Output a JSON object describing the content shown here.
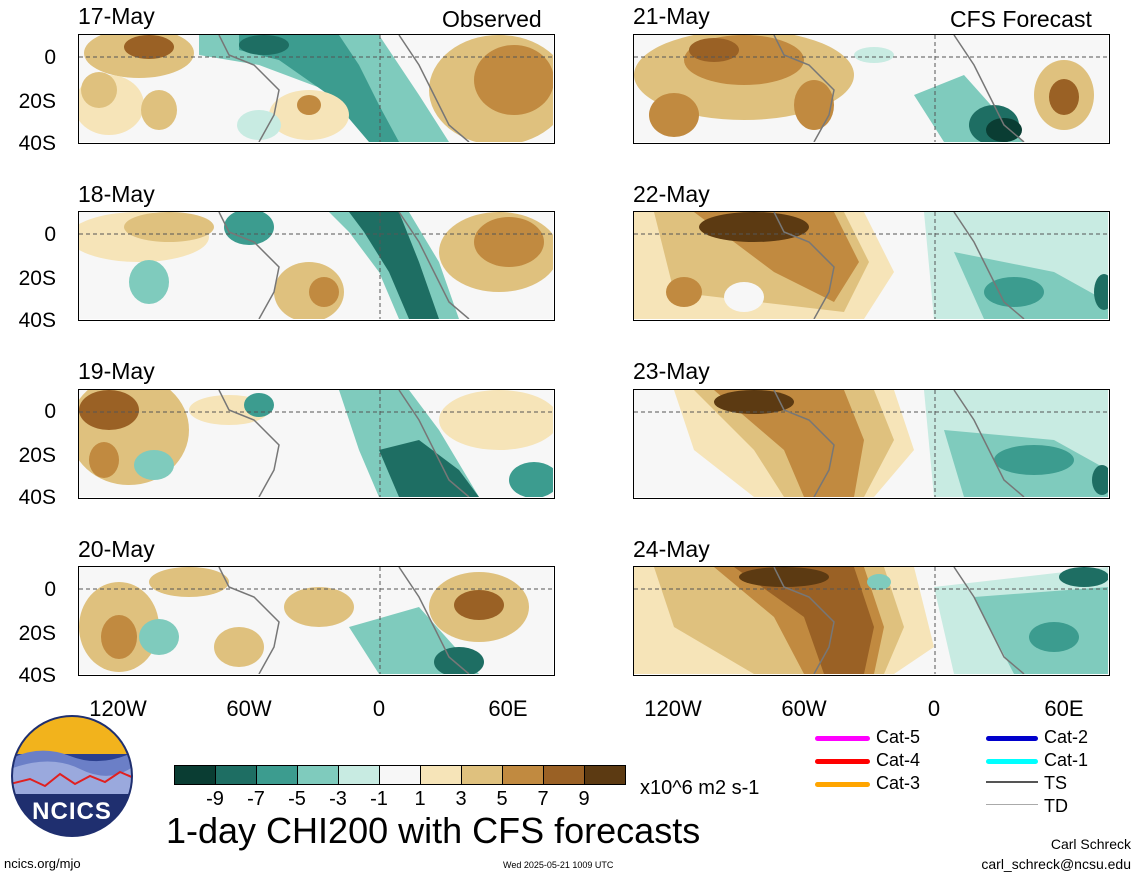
{
  "headers": {
    "left": "Observed",
    "right": "CFS Forecast"
  },
  "panels_left": [
    "17-May",
    "18-May",
    "19-May",
    "20-May"
  ],
  "panels_right": [
    "21-May",
    "22-May",
    "23-May",
    "24-May"
  ],
  "lat_labels": [
    "0",
    "20S",
    "40S"
  ],
  "lon_labels": [
    "120W",
    "60W",
    "0",
    "60E"
  ],
  "colorbar": {
    "ticks": [
      "-9",
      "-7",
      "-5",
      "-3",
      "-1",
      "1",
      "3",
      "5",
      "7",
      "9"
    ],
    "colors": [
      "#0a3d33",
      "#1e6e63",
      "#3c9c8f",
      "#7fcbbd",
      "#c8ebe2",
      "#f7f7f7",
      "#f6e4b8",
      "#dfc17e",
      "#c18a40",
      "#9a6125",
      "#5c3a12"
    ],
    "units": "x10^6 m2 s-1"
  },
  "title": "1-day CHI200 with CFS forecasts",
  "legend": [
    {
      "label": "Cat-5",
      "color": "#ff00ff"
    },
    {
      "label": "Cat-4",
      "color": "#ff0000"
    },
    {
      "label": "Cat-3",
      "color": "#ffa500"
    },
    {
      "label": "Cat-2",
      "color": "#0000cc"
    },
    {
      "label": "Cat-1",
      "color": "#00ffff"
    },
    {
      "label": "TS",
      "color": "#555555"
    },
    {
      "label": "TD",
      "color": "#aaaaaa"
    }
  ],
  "footer": {
    "url": "ncics.org/mjo",
    "timestamp": "Wed 2025-05-21 1009 UTC",
    "author": "Carl Schreck",
    "email": "carl_schreck@ncsu.edu"
  },
  "logo": {
    "text": "NCICS"
  }
}
